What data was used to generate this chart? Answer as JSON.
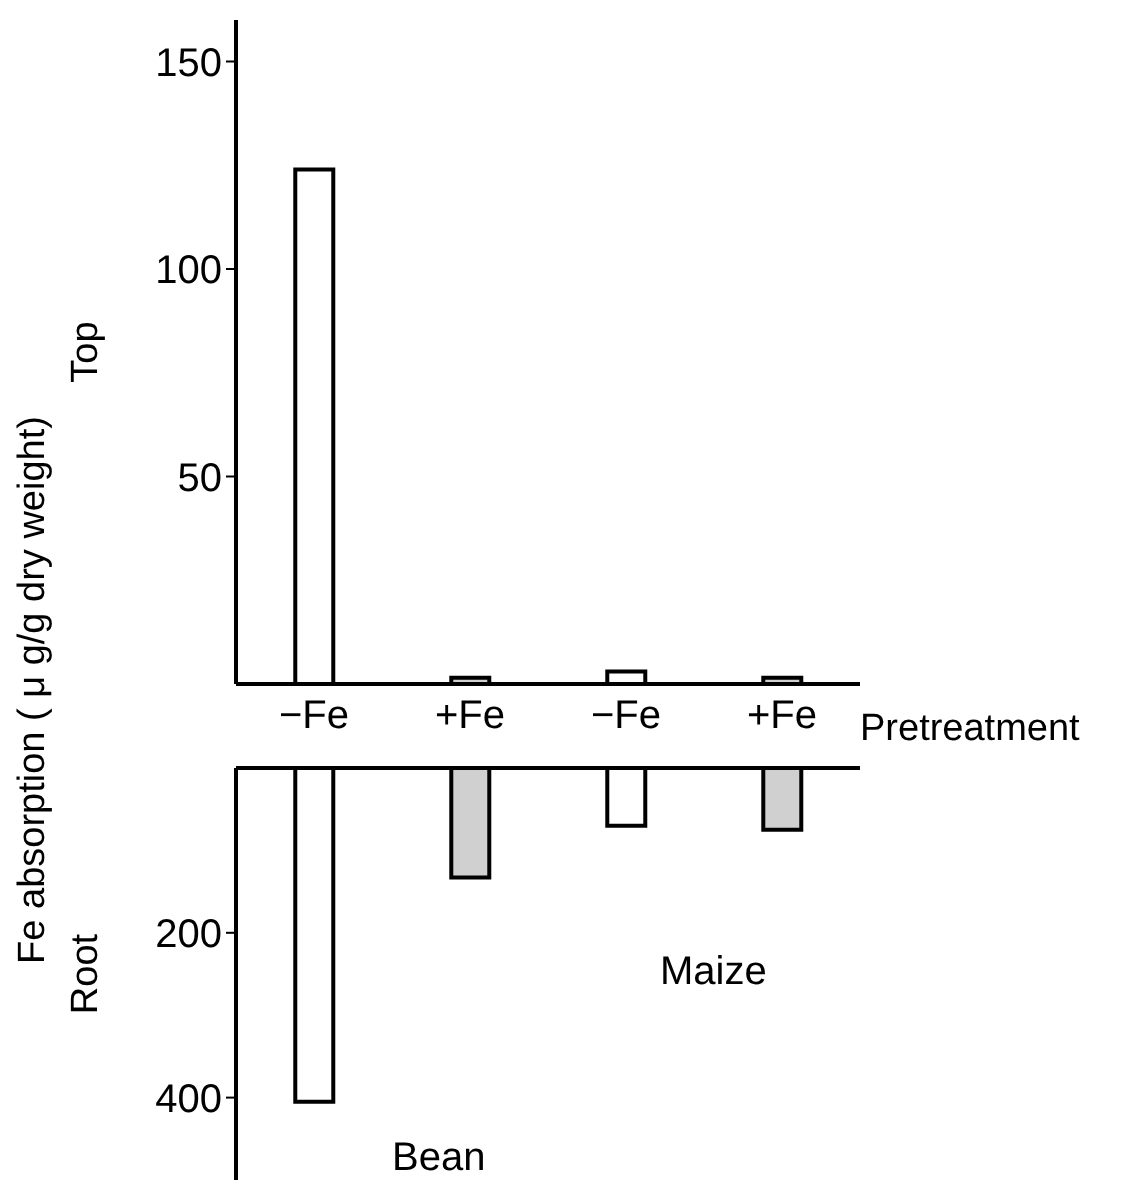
{
  "chart_data": [
    {
      "type": "bar",
      "ylabel": "Top",
      "xlabel": "Pretreatment",
      "categories": [
        "−Fe",
        "+Fe",
        "−Fe",
        "+Fe"
      ],
      "values": [
        124,
        1.5,
        3,
        1.5
      ],
      "colors": [
        "#ffffff",
        "#d0d0d0",
        "#ffffff",
        "#d0d0d0"
      ],
      "ylim": [
        0,
        160
      ],
      "yticks": [
        50,
        100,
        150
      ],
      "grid": false,
      "legend": false,
      "annotations": [
        "Fe absorption ( μ g/g dry weight)"
      ]
    },
    {
      "type": "bar",
      "ylabel": "Root",
      "categories": [
        null,
        null,
        null,
        null
      ],
      "values": [
        405,
        133,
        70,
        75
      ],
      "colors": [
        "#ffffff",
        "#d0d0d0",
        "#ffffff",
        "#d0d0d0"
      ],
      "ylim": [
        500,
        0
      ],
      "yticks": [
        200,
        400
      ],
      "tick_labels": "y",
      "grid": false,
      "legend": false,
      "annotations": [
        "Bean",
        "Maize"
      ]
    }
  ]
}
